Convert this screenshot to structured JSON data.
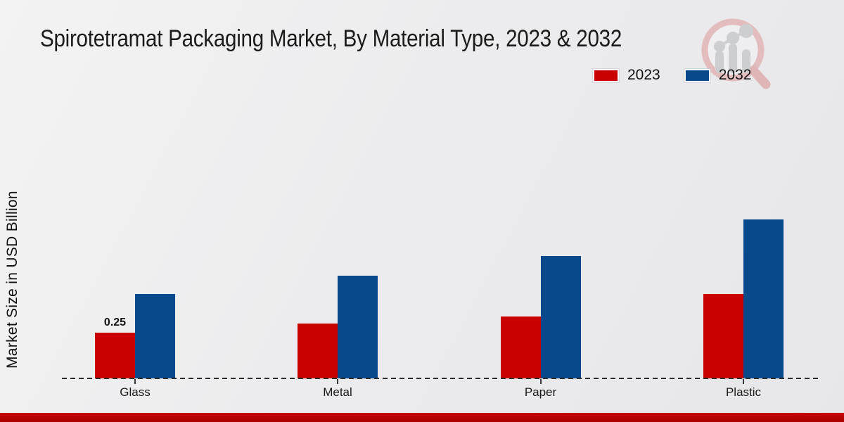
{
  "title": "Spirotetramat Packaging Market, By Material Type, 2023 & 2032",
  "ylabel": "Market Size in USD Billion",
  "legend": {
    "items": [
      {
        "label": "2023",
        "color": "#c90101"
      },
      {
        "label": "2032",
        "color": "#07498a"
      }
    ]
  },
  "chart_data": {
    "type": "bar",
    "title": "Spirotetramat Packaging Market, By Material Type, 2023 & 2032",
    "xlabel": "",
    "ylabel": "Market Size in USD Billion",
    "categories": [
      "Glass",
      "Metal",
      "Paper",
      "Plastic"
    ],
    "series": [
      {
        "name": "2023",
        "color": "#c90101",
        "values": [
          0.25,
          0.3,
          0.34,
          0.46
        ]
      },
      {
        "name": "2032",
        "color": "#07498a",
        "values": [
          0.46,
          0.56,
          0.67,
          0.87
        ]
      }
    ],
    "data_labels": [
      {
        "category": "Glass",
        "series": "2023",
        "text": "0.25"
      }
    ],
    "ylim": [
      0,
      1.0
    ],
    "y_axis_ticks_visible": false,
    "grid": false,
    "legend_position": "top-right",
    "baseline_style": "dashed"
  },
  "colors": {
    "series_2023": "#c90101",
    "series_2032": "#07498a",
    "bottom_strip": "#b00000",
    "background": "#ebebec",
    "text": "#1a1a1a"
  },
  "watermark": {
    "icon": "magnifier-bar-chart-logo"
  }
}
